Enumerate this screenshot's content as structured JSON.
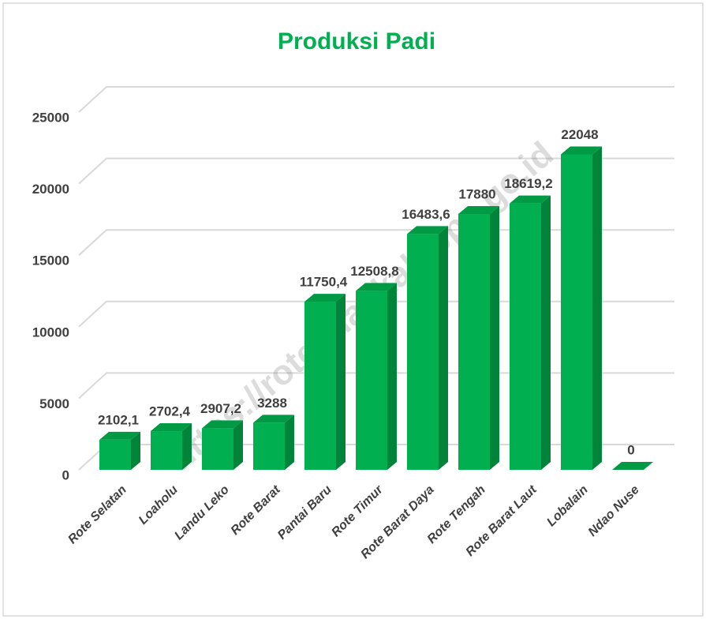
{
  "chart_data": {
    "type": "bar3d",
    "title": "Produksi Padi",
    "watermark": "https://rotendaokab.bps.go.id",
    "categories": [
      "Rote Selatan",
      "Loaholu",
      "Landu Leko",
      "Rote Barat",
      "Pantai Baru",
      "Rote Timur",
      "Rote Barat Daya",
      "Rote Tengah",
      "Rote Barat Laut",
      "Lobalain",
      "Ndao Nuse"
    ],
    "values": [
      2102.1,
      2702.4,
      2907.2,
      3288,
      11750.4,
      12508.8,
      16483.6,
      17880,
      18619.2,
      22048,
      0
    ],
    "value_labels": [
      "2102,1",
      "2702,4",
      "2907,2",
      "3288",
      "11750,4",
      "12508,8",
      "16483,6",
      "17880",
      "18619,2",
      "22048",
      "0"
    ],
    "color": "#00b050",
    "ylim": [
      0,
      25000
    ],
    "yticks": [
      0,
      5000,
      10000,
      15000,
      20000,
      25000
    ],
    "grid": true
  }
}
